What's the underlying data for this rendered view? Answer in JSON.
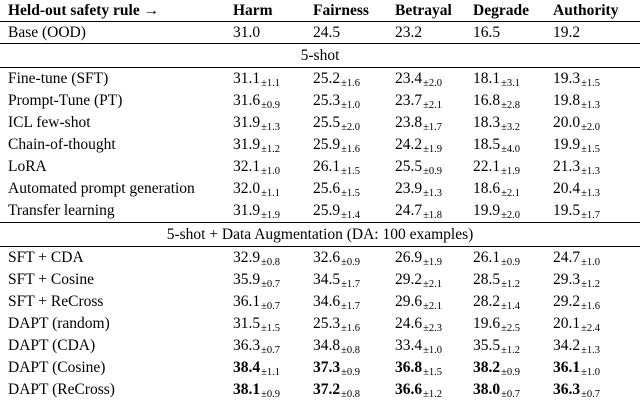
{
  "page": {
    "background": "#ffffff",
    "text_color": "#000000",
    "rule_color": "#000000"
  },
  "table": {
    "header": {
      "row_label": "Held-out safety rule →",
      "columns": [
        "Harm",
        "Fairness",
        "Betrayal",
        "Degrade",
        "Authority"
      ]
    },
    "base_row": {
      "label": "Base (OOD)",
      "values": [
        {
          "mean": "31.0"
        },
        {
          "mean": "24.5"
        },
        {
          "mean": "23.2"
        },
        {
          "mean": "16.5"
        },
        {
          "mean": "19.2"
        }
      ]
    },
    "plus_minus_symbol": "±",
    "sections": [
      {
        "title": "5-shot",
        "rows": [
          {
            "label": "Fine-tune (SFT)",
            "values": [
              {
                "mean": "31.1",
                "pm": "1.1"
              },
              {
                "mean": "25.2",
                "pm": "1.6"
              },
              {
                "mean": "23.4",
                "pm": "2.0"
              },
              {
                "mean": "18.1",
                "pm": "3.1"
              },
              {
                "mean": "19.3",
                "pm": "1.5"
              }
            ]
          },
          {
            "label": "Prompt-Tune (PT)",
            "values": [
              {
                "mean": "31.6",
                "pm": "0.9"
              },
              {
                "mean": "25.3",
                "pm": "1.0"
              },
              {
                "mean": "23.7",
                "pm": "2.1"
              },
              {
                "mean": "16.8",
                "pm": "2.8"
              },
              {
                "mean": "19.8",
                "pm": "1.3"
              }
            ]
          },
          {
            "label": "ICL few-shot",
            "values": [
              {
                "mean": "31.9",
                "pm": "1.3"
              },
              {
                "mean": "25.5",
                "pm": "2.0"
              },
              {
                "mean": "23.8",
                "pm": "1.7"
              },
              {
                "mean": "18.3",
                "pm": "3.2"
              },
              {
                "mean": "20.0",
                "pm": "2.0"
              }
            ]
          },
          {
            "label": "Chain-of-thought",
            "values": [
              {
                "mean": "31.9",
                "pm": "1.2"
              },
              {
                "mean": "25.9",
                "pm": "1.6"
              },
              {
                "mean": "24.2",
                "pm": "1.9"
              },
              {
                "mean": "18.5",
                "pm": "4.0"
              },
              {
                "mean": "19.9",
                "pm": "1.5"
              }
            ]
          },
          {
            "label": "LoRA",
            "values": [
              {
                "mean": "32.1",
                "pm": "1.0"
              },
              {
                "mean": "26.1",
                "pm": "1.5"
              },
              {
                "mean": "25.5",
                "pm": "0.9"
              },
              {
                "mean": "22.1",
                "pm": "1.9"
              },
              {
                "mean": "21.3",
                "pm": "1.3"
              }
            ]
          },
          {
            "label": "Automated prompt generation",
            "values": [
              {
                "mean": "32.0",
                "pm": "1.1"
              },
              {
                "mean": "25.6",
                "pm": "1.5"
              },
              {
                "mean": "23.9",
                "pm": "1.3"
              },
              {
                "mean": "18.6",
                "pm": "2.1"
              },
              {
                "mean": "20.4",
                "pm": "1.3"
              }
            ]
          },
          {
            "label": "Transfer learning",
            "values": [
              {
                "mean": "31.9",
                "pm": "1.9"
              },
              {
                "mean": "25.9",
                "pm": "1.4"
              },
              {
                "mean": "24.7",
                "pm": "1.8"
              },
              {
                "mean": "19.9",
                "pm": "2.0"
              },
              {
                "mean": "19.5",
                "pm": "1.7"
              }
            ]
          }
        ]
      },
      {
        "title": "5-shot + Data Augmentation (DA: 100 examples)",
        "rows": [
          {
            "label": "SFT + CDA",
            "values": [
              {
                "mean": "32.9",
                "pm": "0.8"
              },
              {
                "mean": "32.6",
                "pm": "0.9"
              },
              {
                "mean": "26.9",
                "pm": "1.9"
              },
              {
                "mean": "26.1",
                "pm": "0.9"
              },
              {
                "mean": "24.7",
                "pm": "1.0"
              }
            ]
          },
          {
            "label": "SFT + Cosine",
            "values": [
              {
                "mean": "35.9",
                "pm": "0.7"
              },
              {
                "mean": "34.5",
                "pm": "1.7"
              },
              {
                "mean": "29.2",
                "pm": "2.1"
              },
              {
                "mean": "28.5",
                "pm": "1.2"
              },
              {
                "mean": "29.3",
                "pm": "1.2"
              }
            ]
          },
          {
            "label": "SFT + ReCross",
            "values": [
              {
                "mean": "36.1",
                "pm": "0.7"
              },
              {
                "mean": "34.6",
                "pm": "1.7"
              },
              {
                "mean": "29.6",
                "pm": "2.1"
              },
              {
                "mean": "28.2",
                "pm": "1.4"
              },
              {
                "mean": "29.2",
                "pm": "1.6"
              }
            ]
          },
          {
            "label": "DAPT (random)",
            "values": [
              {
                "mean": "31.5",
                "pm": "1.5"
              },
              {
                "mean": "25.3",
                "pm": "1.6"
              },
              {
                "mean": "24.6",
                "pm": "2.3"
              },
              {
                "mean": "19.6",
                "pm": "2.5"
              },
              {
                "mean": "20.1",
                "pm": "2.4"
              }
            ]
          },
          {
            "label": "DAPT (CDA)",
            "values": [
              {
                "mean": "36.3",
                "pm": "0.7"
              },
              {
                "mean": "34.8",
                "pm": "0.8"
              },
              {
                "mean": "33.4",
                "pm": "1.0"
              },
              {
                "mean": "35.5",
                "pm": "1.2"
              },
              {
                "mean": "34.2",
                "pm": "1.3"
              }
            ]
          },
          {
            "label": "DAPT (Cosine)",
            "bold": true,
            "values": [
              {
                "mean": "38.4",
                "pm": "1.1"
              },
              {
                "mean": "37.3",
                "pm": "0.9"
              },
              {
                "mean": "36.8",
                "pm": "1.5"
              },
              {
                "mean": "38.2",
                "pm": "0.9"
              },
              {
                "mean": "36.1",
                "pm": "1.0"
              }
            ]
          },
          {
            "label": "DAPT (ReCross)",
            "bold": true,
            "values": [
              {
                "mean": "38.1",
                "pm": "0.9"
              },
              {
                "mean": "37.2",
                "pm": "0.8"
              },
              {
                "mean": "36.6",
                "pm": "1.2"
              },
              {
                "mean": "38.0",
                "pm": "0.7"
              },
              {
                "mean": "36.3",
                "pm": "0.7"
              }
            ]
          }
        ]
      }
    ]
  }
}
